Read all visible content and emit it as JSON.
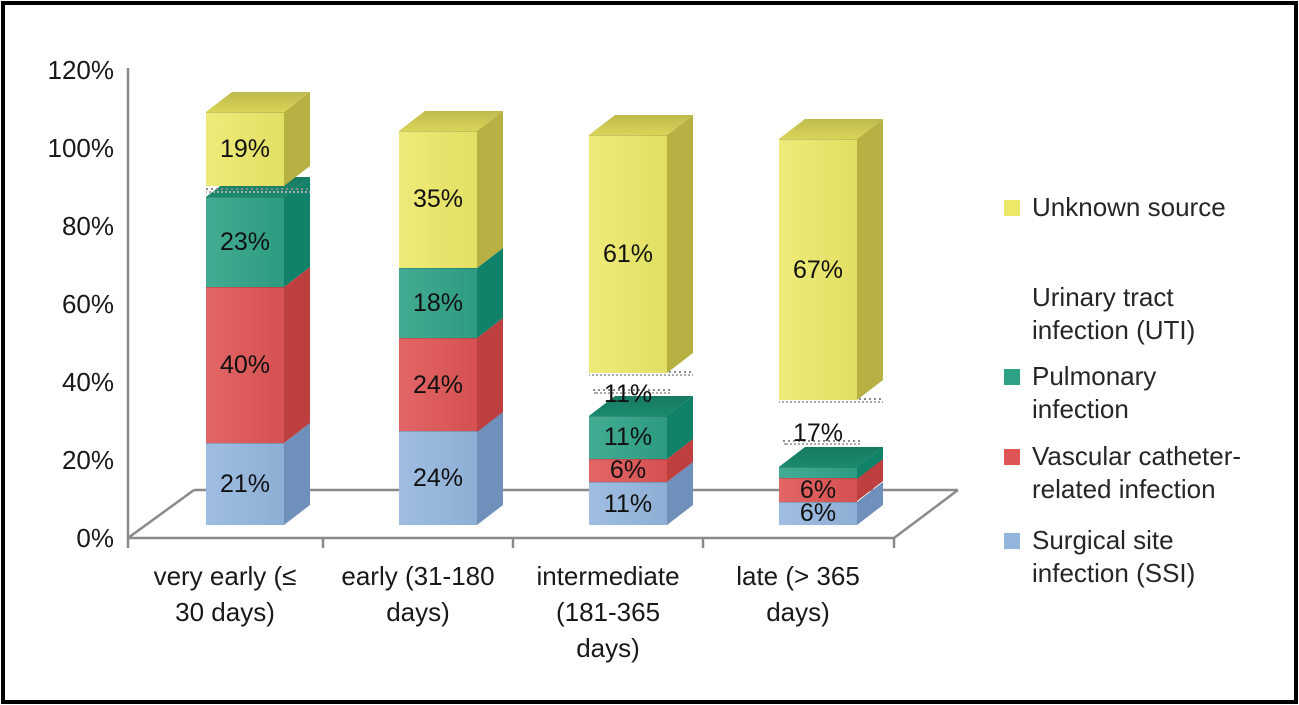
{
  "figure": {
    "background": "#ffffff",
    "border_color": "#000000",
    "axis_line_color": "#8a8a8a",
    "text_color": "#1c1c1c"
  },
  "chart_data": {
    "type": "bar",
    "subtype": "3d-stacked-column",
    "title": "",
    "xlabel": "",
    "ylabel": "",
    "grid": false,
    "x_categories": [
      "very early (≤ 30 days)",
      "early (31-180 days)",
      "intermediate (181-365 days)",
      "late (> 365 days)"
    ],
    "x_category_lines": [
      [
        "very early (≤",
        "30 days)"
      ],
      [
        "early (31-180",
        "days)"
      ],
      [
        "intermediate",
        "(181-365",
        "days)"
      ],
      [
        "late (> 365",
        "days)"
      ]
    ],
    "y_axis": {
      "tick_labels": [
        "0%",
        "20%",
        "40%",
        "60%",
        "80%",
        "100%",
        "120%"
      ],
      "min": 0,
      "max": 120,
      "unit": "%"
    },
    "series": [
      {
        "key": "ssi",
        "name": "Surgical site infection (SSI)",
        "color": "#94b6de",
        "side_color": "#7090bc",
        "values": [
          21,
          24,
          11,
          6
        ],
        "labels": [
          "21%",
          "24%",
          "11%",
          "6%"
        ]
      },
      {
        "key": "vascular",
        "name": "Vascular catheter-related infection",
        "color": "#df5454",
        "side_color": "#bd3f3f",
        "values": [
          40,
          24,
          6,
          6
        ],
        "labels": [
          "40%",
          "24%",
          "6%",
          "6%"
        ]
      },
      {
        "key": "pulmonary",
        "name": "Pulmonary infection",
        "color": "#2ea287",
        "side_color": "#11826a",
        "top_color": "#1a8a6e",
        "values": [
          23,
          18,
          11,
          3
        ],
        "labels": [
          "23%",
          "18%",
          "11%",
          ""
        ]
      },
      {
        "key": "uti",
        "name": "Urinary tract infection (UTI)",
        "color": "#ffffff",
        "side_color": "#ffffff",
        "hatched": true,
        "values": [
          3,
          0,
          11,
          17
        ],
        "labels": [
          "",
          "",
          "11%",
          "17%"
        ]
      },
      {
        "key": "unknown",
        "name": "Unknown source",
        "color": "#ece969",
        "side_color": "#b7b144",
        "top_color": "#d9d458",
        "values": [
          19,
          35,
          61,
          67
        ],
        "labels": [
          "19%",
          "35%",
          "61%",
          "67%"
        ]
      }
    ],
    "legend": {
      "position": "right",
      "items": [
        {
          "key": "unknown",
          "color": "#ece969",
          "lines": [
            "Unknown source"
          ]
        },
        {
          "key": "uti",
          "color": "#ffffff",
          "lines": [
            "Urinary tract",
            "infection (UTI)"
          ]
        },
        {
          "key": "pulmonary",
          "color": "#2ea287",
          "lines": [
            "Pulmonary",
            "infection"
          ]
        },
        {
          "key": "vascular",
          "color": "#df5454",
          "lines": [
            "Vascular catheter-",
            "related infection"
          ]
        },
        {
          "key": "ssi",
          "color": "#94b6de",
          "lines": [
            "Surgical site",
            "infection (SSI)"
          ]
        }
      ]
    }
  }
}
